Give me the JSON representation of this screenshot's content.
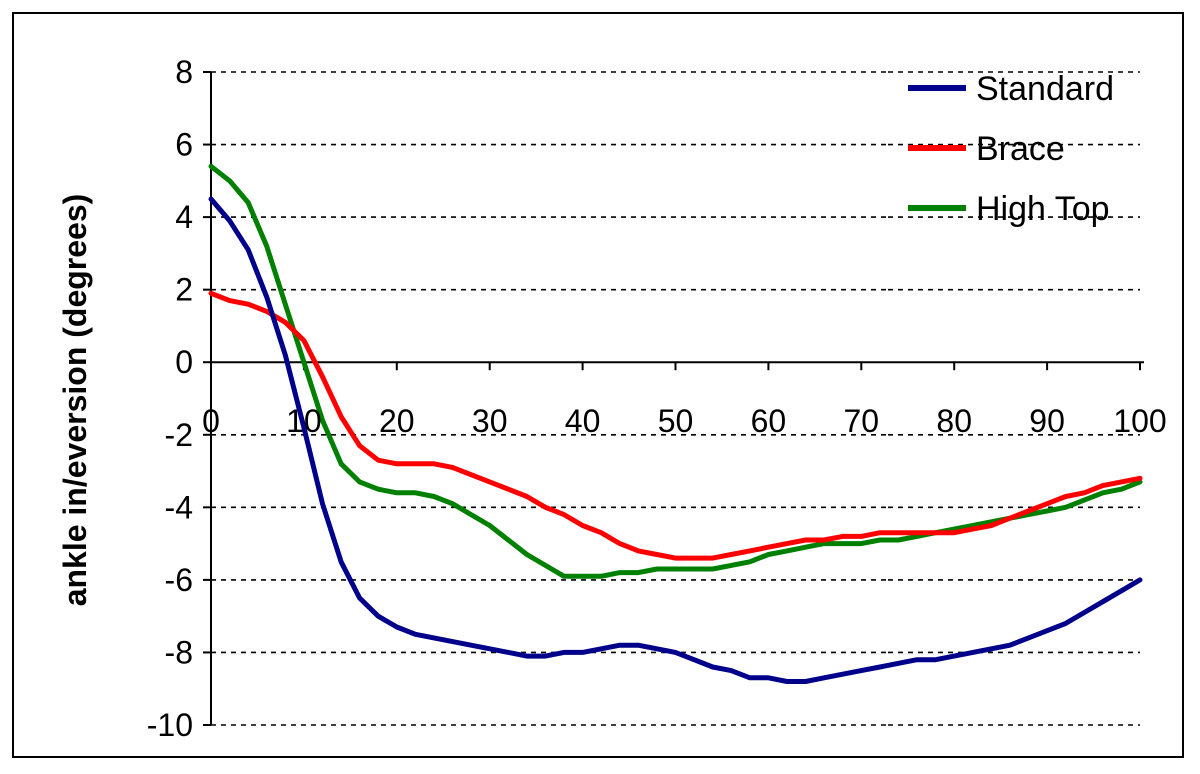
{
  "chart_data": {
    "type": "line",
    "ylabel": "ankle in/eversion (degrees)",
    "xlabel": "",
    "xlim": [
      0,
      100
    ],
    "ylim": [
      -10,
      8
    ],
    "x_ticks": [
      "0",
      "10",
      "20",
      "30",
      "40",
      "50",
      "60",
      "70",
      "80",
      "90",
      "100"
    ],
    "y_ticks": [
      "8",
      "6",
      "4",
      "2",
      "0",
      "-2",
      "-4",
      "-6",
      "-8",
      "-10"
    ],
    "grid": "horizontal dashed",
    "legend_position": "top-right",
    "x": [
      0,
      2,
      4,
      6,
      8,
      10,
      12,
      14,
      16,
      18,
      20,
      22,
      24,
      26,
      28,
      30,
      32,
      34,
      36,
      38,
      40,
      42,
      44,
      46,
      48,
      50,
      52,
      54,
      56,
      58,
      60,
      62,
      64,
      66,
      68,
      70,
      72,
      74,
      76,
      78,
      80,
      82,
      84,
      86,
      88,
      90,
      92,
      94,
      96,
      98,
      100
    ],
    "series": [
      {
        "name": "Standard",
        "color": "#00008B",
        "values": [
          4.5,
          3.9,
          3.1,
          1.8,
          0.2,
          -1.8,
          -3.9,
          -5.5,
          -6.5,
          -7.0,
          -7.3,
          -7.5,
          -7.6,
          -7.7,
          -7.8,
          -7.9,
          -8.0,
          -8.1,
          -8.1,
          -8.0,
          -8.0,
          -7.9,
          -7.8,
          -7.8,
          -7.9,
          -8.0,
          -8.2,
          -8.4,
          -8.5,
          -8.7,
          -8.7,
          -8.8,
          -8.8,
          -8.7,
          -8.6,
          -8.5,
          -8.4,
          -8.3,
          -8.2,
          -8.2,
          -8.1,
          -8.0,
          -7.9,
          -7.8,
          -7.6,
          -7.4,
          -7.2,
          -6.9,
          -6.6,
          -6.3,
          -6.0
        ]
      },
      {
        "name": "Brace",
        "color": "#FF0000",
        "values": [
          1.9,
          1.7,
          1.6,
          1.4,
          1.1,
          0.6,
          -0.4,
          -1.5,
          -2.3,
          -2.7,
          -2.8,
          -2.8,
          -2.8,
          -2.9,
          -3.1,
          -3.3,
          -3.5,
          -3.7,
          -4.0,
          -4.2,
          -4.5,
          -4.7,
          -5.0,
          -5.2,
          -5.3,
          -5.4,
          -5.4,
          -5.4,
          -5.3,
          -5.2,
          -5.1,
          -5.0,
          -4.9,
          -4.9,
          -4.8,
          -4.8,
          -4.7,
          -4.7,
          -4.7,
          -4.7,
          -4.7,
          -4.6,
          -4.5,
          -4.3,
          -4.1,
          -3.9,
          -3.7,
          -3.6,
          -3.4,
          -3.3,
          -3.2
        ]
      },
      {
        "name": "High Top",
        "color": "#008000",
        "values": [
          5.4,
          5.0,
          4.4,
          3.2,
          1.6,
          0.0,
          -1.6,
          -2.8,
          -3.3,
          -3.5,
          -3.6,
          -3.6,
          -3.7,
          -3.9,
          -4.2,
          -4.5,
          -4.9,
          -5.3,
          -5.6,
          -5.9,
          -5.9,
          -5.9,
          -5.8,
          -5.8,
          -5.7,
          -5.7,
          -5.7,
          -5.7,
          -5.6,
          -5.5,
          -5.3,
          -5.2,
          -5.1,
          -5.0,
          -5.0,
          -5.0,
          -4.9,
          -4.9,
          -4.8,
          -4.7,
          -4.6,
          -4.5,
          -4.4,
          -4.3,
          -4.2,
          -4.1,
          -4.0,
          -3.8,
          -3.6,
          -3.5,
          -3.3
        ]
      }
    ]
  }
}
